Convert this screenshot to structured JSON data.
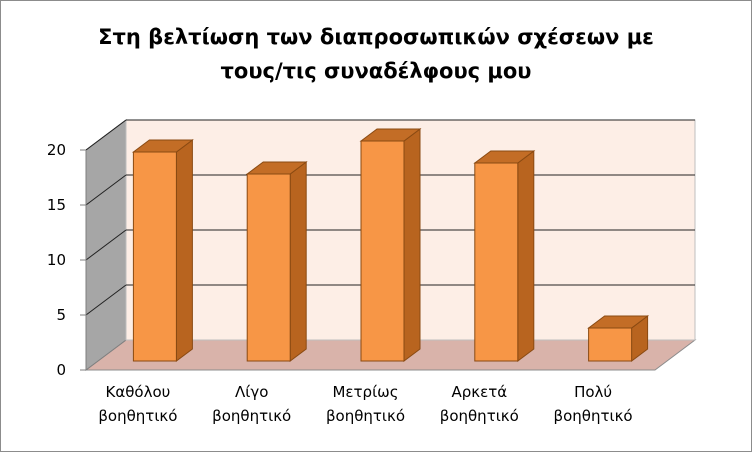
{
  "chart_data": {
    "type": "bar",
    "title_lines": [
      "Στη βελτίωση των διαπροσωπικών σχέσεων με",
      "τους/τις συναδέλφους μου"
    ],
    "categories": [
      [
        "Καθόλου",
        "βοηθητικό"
      ],
      [
        "Λίγο",
        "βοηθητικό"
      ],
      [
        "Μετρίως",
        "βοηθητικό"
      ],
      [
        "Αρκετά",
        "βοηθητικό"
      ],
      [
        "Πολύ",
        "βοηθητικό"
      ]
    ],
    "values": [
      19,
      17,
      20,
      18,
      3
    ],
    "yticks": [
      "0",
      "5",
      "10",
      "15",
      "20"
    ],
    "ylim": [
      0,
      20
    ],
    "three_d": true,
    "grid": true,
    "legend": "none",
    "colors": {
      "bar_front": "#f79646",
      "bar_side": "#b8641f",
      "bar_top": "#c36d26",
      "bar_edge": "#8a4a12",
      "back_wall": "#fdeee6",
      "side_wall": "#a6a6a6",
      "floor": "#d9b3aa",
      "gridline": "#222222"
    }
  }
}
